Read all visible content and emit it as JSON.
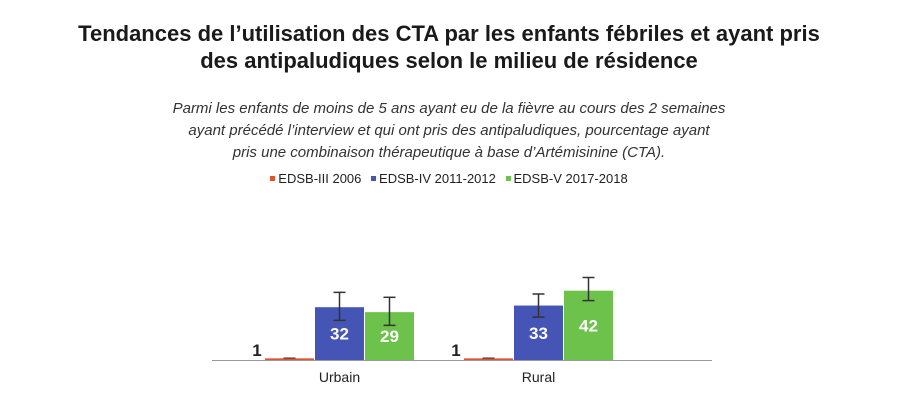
{
  "title_line1": "Tendances de l’utilisation des CTA par les enfants fébriles et ayant pris",
  "title_line2": "des antipaludiques selon le milieu de résidence",
  "subtitle_line1": "Parmi les enfants de moins de 5 ans ayant eu de la fièvre au cours des 2 semaines",
  "subtitle_line2": "ayant précédé l’interview et qui ont pris des antipaludiques, pourcentage ayant",
  "subtitle_line3": "pris une combinaison thérapeutique à base d’Artémisinine (CTA).",
  "chart_data": {
    "type": "bar",
    "title": "Tendances de l’utilisation des CTA par les enfants fébriles et ayant pris des antipaludiques selon le milieu de résidence",
    "categories": [
      "Urbain",
      "Rural"
    ],
    "series": [
      {
        "name": "EDSB-III 2006",
        "color": "#e0542c",
        "values": [
          1,
          1
        ],
        "labels": [
          "1",
          "1"
        ]
      },
      {
        "name": "EDSB-IV 2011-2012",
        "color": "#4455b5",
        "values": [
          32,
          33
        ],
        "labels": [
          "32",
          "33"
        ]
      },
      {
        "name": "EDSB-V 2017-2018",
        "color": "#6cc24a",
        "values": [
          29,
          42
        ],
        "labels": [
          "29",
          "42"
        ]
      }
    ],
    "error_bars": [
      [
        [
          0.5,
          1.5
        ],
        [
          0.5,
          1.5
        ]
      ],
      [
        [
          24,
          41
        ],
        [
          26,
          40
        ]
      ],
      [
        [
          21,
          38
        ],
        [
          36,
          50
        ]
      ]
    ],
    "ylim": [
      0,
      100
    ],
    "legend_position": "top",
    "grid": false,
    "xlabel": "",
    "ylabel": ""
  }
}
